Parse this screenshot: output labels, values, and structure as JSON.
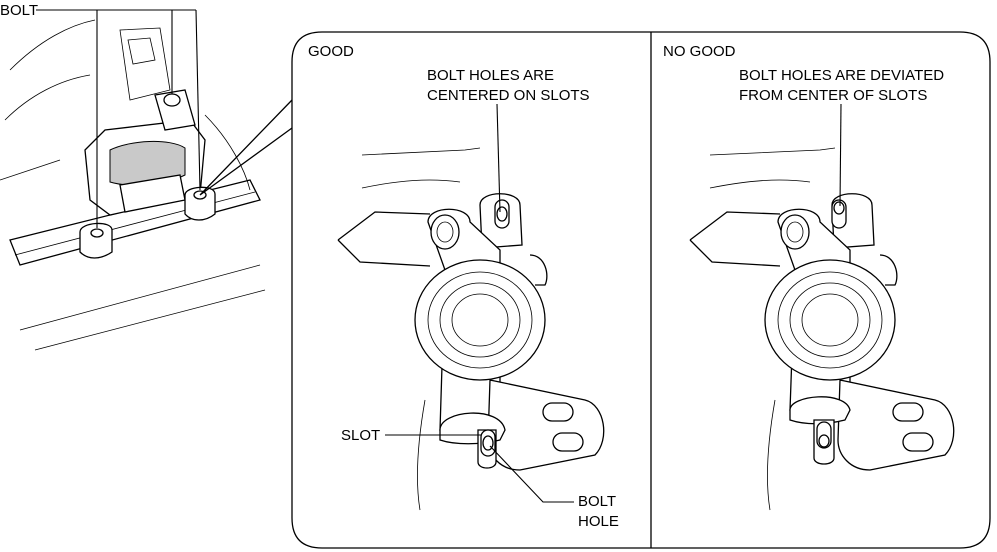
{
  "callouts": {
    "bolt": "BOLT",
    "good_heading": "GOOD",
    "no_good_heading": "NO GOOD",
    "good_note_line1": "BOLT HOLES ARE",
    "good_note_line2": "CENTERED ON SLOTS",
    "no_good_note_line1": "BOLT HOLES ARE DEVIATED",
    "no_good_note_line2": "FROM CENTER OF SLOTS",
    "slot": "SLOT",
    "bolt_hole_line1": "BOLT",
    "bolt_hole_line2": "HOLE"
  }
}
